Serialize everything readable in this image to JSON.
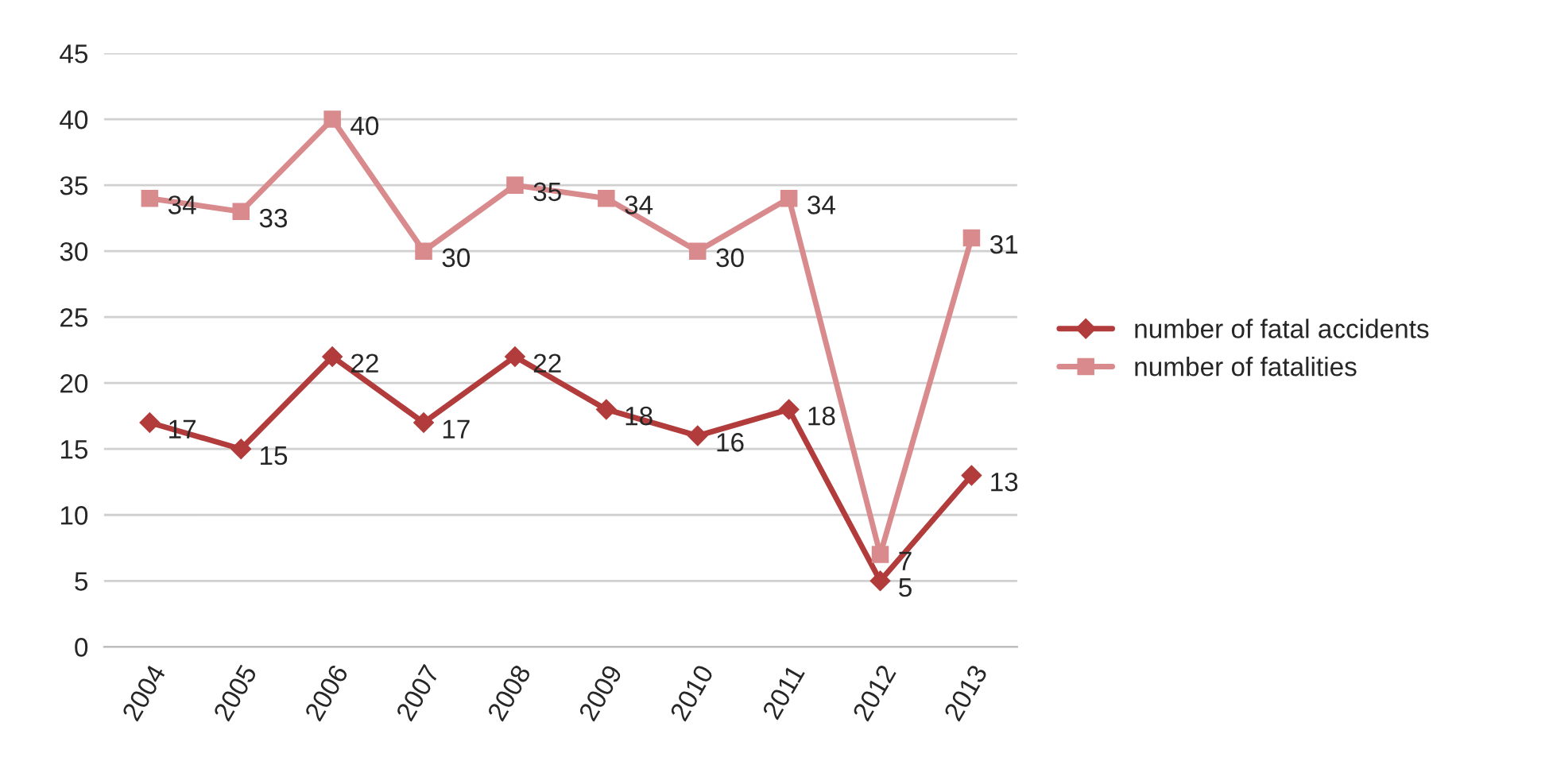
{
  "chart_data": {
    "type": "line",
    "categories": [
      "2004",
      "2005",
      "2006",
      "2007",
      "2008",
      "2009",
      "2010",
      "2011",
      "2012",
      "2013"
    ],
    "series": [
      {
        "name": "number of fatal accidents",
        "color": "#b23b3b",
        "marker": "diamond",
        "values": [
          17,
          15,
          22,
          17,
          22,
          18,
          16,
          18,
          5,
          13
        ]
      },
      {
        "name": "number of fatalities",
        "color": "#d98a8c",
        "marker": "square",
        "values": [
          34,
          33,
          40,
          30,
          35,
          34,
          30,
          34,
          7,
          31
        ]
      }
    ],
    "ylim": [
      0,
      45
    ],
    "yticks": [
      0,
      5,
      10,
      15,
      20,
      25,
      30,
      35,
      40,
      45
    ],
    "grid": "y",
    "legend": "right",
    "data_labels": true,
    "line_style": "solid"
  }
}
